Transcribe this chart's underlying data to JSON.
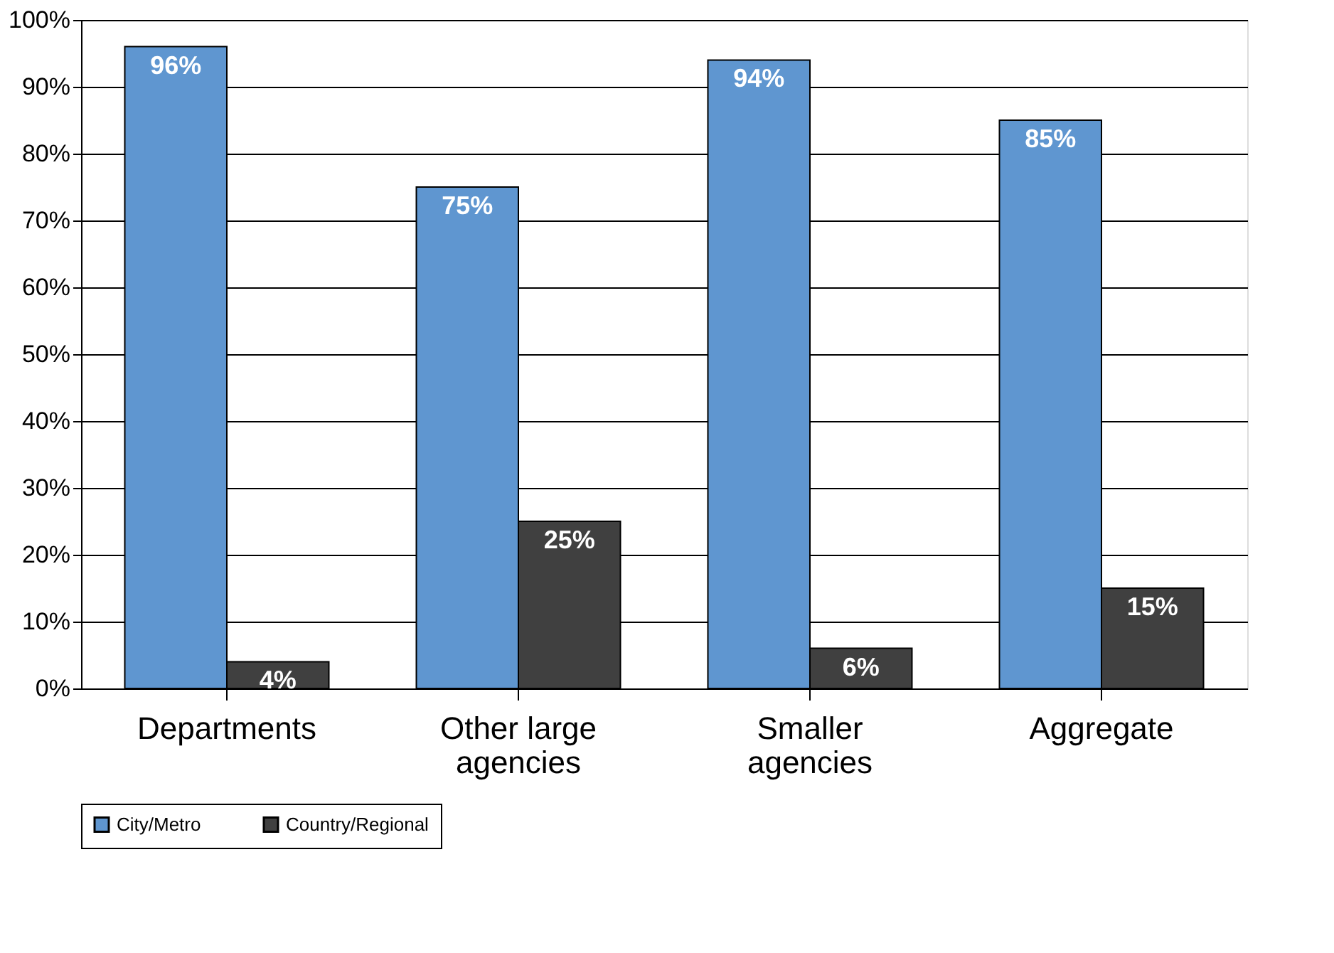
{
  "chart_data": {
    "type": "bar",
    "categories": [
      "Departments",
      "Other large agencies",
      "Smaller agencies",
      "Aggregate"
    ],
    "series": [
      {
        "name": "City/Metro",
        "color": "#5f96d0",
        "values": [
          96,
          75,
          94,
          85
        ]
      },
      {
        "name": "Country/Regional",
        "color": "#404040",
        "values": [
          4,
          25,
          6,
          15
        ]
      }
    ],
    "ylim": [
      0,
      100
    ],
    "yticks": [
      {
        "value": 0,
        "label": "0%"
      },
      {
        "value": 10,
        "label": "10%"
      },
      {
        "value": 20,
        "label": "20%"
      },
      {
        "value": 30,
        "label": "30%"
      },
      {
        "value": 40,
        "label": "40%"
      },
      {
        "value": 50,
        "label": "50%"
      },
      {
        "value": 60,
        "label": "60%"
      },
      {
        "value": 70,
        "label": "70%"
      },
      {
        "value": 80,
        "label": "80%"
      },
      {
        "value": 90,
        "label": "90%"
      },
      {
        "value": 100,
        "label": "100%"
      }
    ],
    "value_labels": [
      [
        "96%",
        "75%",
        "94%",
        "85%"
      ],
      [
        "4%",
        "25%",
        "6%",
        "15%"
      ]
    ],
    "grid": "y",
    "legend": "bottom"
  }
}
